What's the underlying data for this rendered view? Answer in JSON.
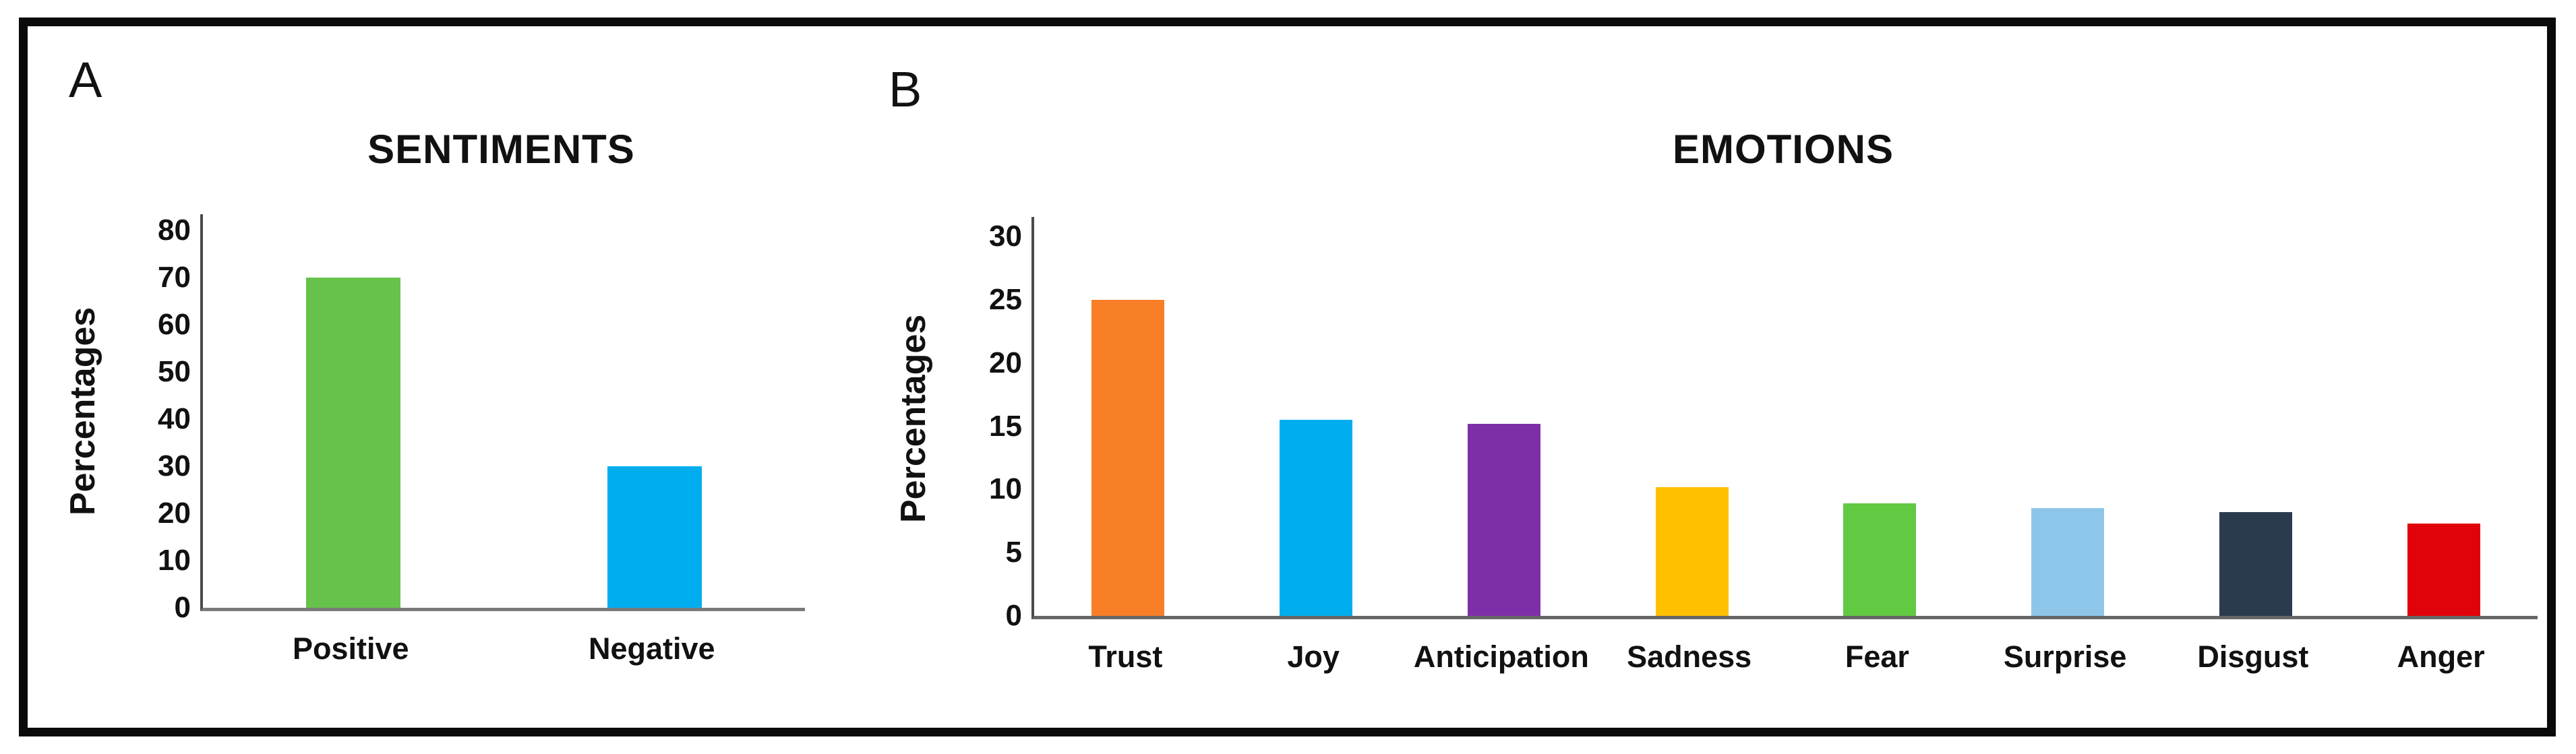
{
  "figure": {
    "panel_a_letter": "A",
    "panel_b_letter": "B"
  },
  "chart_data": [
    {
      "type": "bar",
      "title": "SENTIMENTS",
      "xlabel": "",
      "ylabel": "Percentages",
      "categories": [
        "Positive",
        "Negative"
      ],
      "values": [
        70,
        30
      ],
      "bar_colors": [
        "#66C24A",
        "#00AEEF"
      ],
      "ylim": [
        0,
        80
      ],
      "ytick_step": 10,
      "yticks": [
        0,
        10,
        20,
        30,
        40,
        50,
        60,
        70,
        80
      ],
      "grid": "off",
      "legend": "none",
      "axis_color": "#4a4a4a",
      "baseline_color": "#7a7a7a"
    },
    {
      "type": "bar",
      "title": "EMOTIONS",
      "xlabel": "",
      "ylabel": "Percentages",
      "categories": [
        "Trust",
        "Joy",
        "Anticipation",
        "Sadness",
        "Fear",
        "Surprise",
        "Disgust",
        "Anger"
      ],
      "values": [
        25,
        15.5,
        15.2,
        10.2,
        8.9,
        8.5,
        8.2,
        7.3
      ],
      "bar_colors": [
        "#F87E28",
        "#00AEEF",
        "#7D2FA8",
        "#FFC000",
        "#62C943",
        "#8EC6E9",
        "#2B3B4F",
        "#E00309"
      ],
      "ylim": [
        0,
        30
      ],
      "ytick_step": 5,
      "yticks": [
        0,
        5,
        10,
        15,
        20,
        25,
        30
      ],
      "grid": "off",
      "legend": "none",
      "axis_color": "#4a4a4a",
      "baseline_color": "#666666"
    }
  ]
}
